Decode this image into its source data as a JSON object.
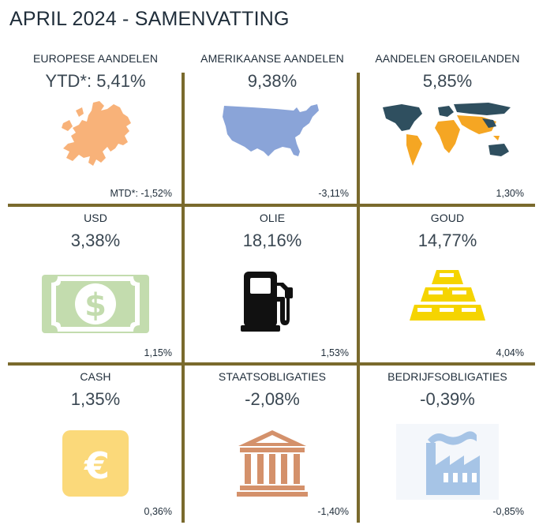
{
  "title": "APRIL 2024 - SAMENVATTING",
  "colors": {
    "divider": "#7a6a2d"
  },
  "cells": [
    {
      "label": "EUROPESE AANDELEN",
      "value": "YTD*: 5,41%",
      "mtd": "MTD*: -1,52%",
      "icon": "europe-map-icon"
    },
    {
      "label": "AMERIKAANSE AANDELEN",
      "value": "9,38%",
      "mtd": "-3,11%",
      "icon": "usa-map-icon"
    },
    {
      "label": "AANDELEN GROEILANDEN",
      "value": "5,85%",
      "mtd": "1,30%",
      "icon": "world-map-icon"
    },
    {
      "label": "USD",
      "value": "3,38%",
      "mtd": "1,15%",
      "icon": "dollar-bill-icon"
    },
    {
      "label": "OLIE",
      "value": "18,16%",
      "mtd": "1,53%",
      "icon": "fuel-pump-icon"
    },
    {
      "label": "GOUD",
      "value": "14,77%",
      "mtd": "4,04%",
      "icon": "gold-bars-icon"
    },
    {
      "label": "CASH",
      "value": "1,35%",
      "mtd": "0,36%",
      "icon": "euro-icon"
    },
    {
      "label": "STAATSOBLIGATIES",
      "value": "-2,08%",
      "mtd": "-1,40%",
      "icon": "government-building-icon"
    },
    {
      "label": "BEDRIJFSOBLIGATIES",
      "value": "-0,39%",
      "mtd": "-0,85%",
      "icon": "factory-icon"
    }
  ]
}
